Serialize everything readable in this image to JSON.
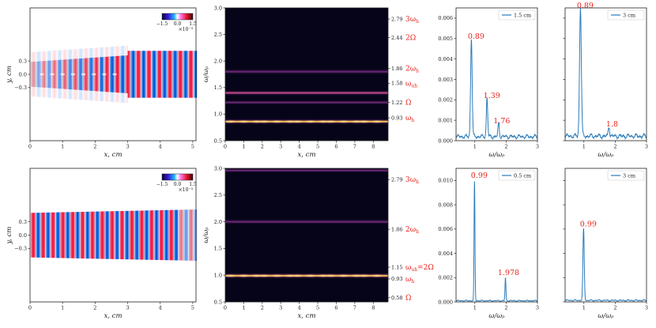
{
  "chart_data": {
    "type": "multi-panel",
    "colors": {
      "line": "#2b7bba",
      "annot": "#e8251d",
      "spectrogram_bg": "#050418",
      "axis": "#222222"
    },
    "rows": [
      {
        "field_map": {
          "type": "heatmap",
          "xlabel": "x, cm",
          "ylabel": "y, cm",
          "xlim": [
            0,
            5.1
          ],
          "ylim": [
            -1.5,
            1.5
          ],
          "xticks": [
            0,
            1,
            2,
            3,
            4,
            5
          ],
          "yticks": [
            0.3,
            0.0,
            -0.3
          ],
          "colorbar": {
            "ticks": [
              "−1.5",
              "0.0",
              "1.5"
            ],
            "exponent": "×10⁻³"
          }
        },
        "spectrogram": {
          "type": "heatmap",
          "xlabel": "x, cm",
          "ylabel": "ω/ωp",
          "xlim": [
            0,
            8.8
          ],
          "ylim": [
            0.5,
            3.0
          ],
          "xticks": [
            0,
            1,
            2,
            3,
            4,
            5,
            6,
            7,
            8
          ],
          "yticks": [
            0.5,
            1.0,
            1.5,
            2.0,
            2.5,
            3.0
          ],
          "bands": [
            {
              "y": 0.86,
              "intensity": 1.0
            },
            {
              "y": 1.4,
              "intensity": 0.6
            },
            {
              "y": 1.22,
              "intensity": 0.25
            },
            {
              "y": 1.8,
              "intensity": 0.45
            }
          ],
          "right_ticks": [
            {
              "value": 2.79,
              "label": "2.79",
              "name": "3ωh"
            },
            {
              "value": 2.44,
              "label": "2.44",
              "name": "2Ω"
            },
            {
              "value": 1.86,
              "label": "1.86",
              "name": "2ωh"
            },
            {
              "value": 1.58,
              "label": "1.58",
              "name": "ωuh"
            },
            {
              "value": 1.22,
              "label": "1.22",
              "name": "Ω"
            },
            {
              "value": 0.93,
              "label": "0.93",
              "name": "ωh"
            }
          ]
        },
        "spectra": [
          {
            "type": "line",
            "legend": "1.5 cm",
            "xlabel": "ω/ωp",
            "xlim": [
              0.4,
              3.0
            ],
            "ylim": [
              0,
              0.0065
            ],
            "xticks": [
              1,
              2,
              3
            ],
            "yticks": [
              {
                "value": 0,
                "label": "0.000"
              },
              {
                "value": 0.001,
                "label": "0.001"
              },
              {
                "value": 0.002,
                "label": "0.002"
              },
              {
                "value": 0.003,
                "label": "0.003"
              },
              {
                "value": 0.004,
                "label": "0.004"
              },
              {
                "value": 0.005,
                "label": "0.005"
              },
              {
                "value": 0.006,
                "label": "0.006"
              }
            ],
            "peaks": [
              {
                "x": 0.89,
                "y": 0.0048,
                "w": 0.035,
                "label": "0.89"
              },
              {
                "x": 1.39,
                "y": 0.0019,
                "w": 0.03,
                "label": "1.39"
              },
              {
                "x": 1.76,
                "y": 0.00065,
                "w": 0.03,
                "label": "1.76"
              }
            ],
            "baseline": 0.00016
          },
          {
            "type": "line",
            "legend": "3 cm",
            "xlabel": "ω/ωp",
            "xlim": [
              0.4,
              3.0
            ],
            "ylim": [
              0,
              0.0065
            ],
            "xticks": [
              1,
              2,
              3
            ],
            "yticks": [],
            "peaks": [
              {
                "x": 0.89,
                "y": 0.0063,
                "w": 0.04,
                "label": "0.89"
              },
              {
                "x": 1.8,
                "y": 0.0005,
                "w": 0.03,
                "label": "1.8"
              }
            ],
            "baseline": 0.00018
          }
        ]
      },
      {
        "field_map": {
          "type": "heatmap",
          "xlabel": "x, cm",
          "ylabel": "y, cm",
          "xlim": [
            0,
            5.1
          ],
          "ylim": [
            -1.5,
            1.5
          ],
          "xticks": [
            0,
            1,
            2,
            3,
            4,
            5
          ],
          "yticks": [
            0.3,
            0.0,
            -0.3
          ],
          "colorbar": {
            "ticks": [
              "−1.5",
              "0.0",
              "1.5"
            ],
            "exponent": "×10⁻³"
          }
        },
        "spectrogram": {
          "type": "heatmap",
          "xlabel": "x, cm",
          "ylabel": "ω/ωp",
          "xlim": [
            0,
            8.8
          ],
          "ylim": [
            0.5,
            3.0
          ],
          "xticks": [
            0,
            1,
            2,
            3,
            4,
            5,
            6,
            7,
            8
          ],
          "yticks": [
            0.5,
            1.0,
            1.5,
            2.0,
            2.5,
            3.0
          ],
          "bands": [
            {
              "y": 0.99,
              "intensity": 1.0
            },
            {
              "y": 2.0,
              "intensity": 0.45
            },
            {
              "y": 2.96,
              "intensity": 0.25
            }
          ],
          "right_ticks": [
            {
              "value": 2.79,
              "label": "2.79",
              "name": "3ωh"
            },
            {
              "value": 1.86,
              "label": "1.86",
              "name": "2ωh"
            },
            {
              "value": 1.15,
              "label": "1.15",
              "name": "ωuh=2Ω"
            },
            {
              "value": 0.93,
              "label": "0.93",
              "name": "ωh"
            },
            {
              "value": 0.58,
              "label": "0.58",
              "name": "Ω"
            }
          ]
        },
        "spectra": [
          {
            "type": "line",
            "legend": "0.5 cm",
            "xlabel": "ω/ωp",
            "xlim": [
              0.4,
              3.0
            ],
            "ylim": [
              0,
              0.011
            ],
            "xticks": [
              1,
              2,
              3
            ],
            "yticks": [
              {
                "value": 0,
                "label": "0.000"
              },
              {
                "value": 0.002,
                "label": "0.002"
              },
              {
                "value": 0.004,
                "label": "0.004"
              },
              {
                "value": 0.006,
                "label": "0.006"
              },
              {
                "value": 0.008,
                "label": "0.008"
              },
              {
                "value": 0.01,
                "label": "0.010"
              }
            ],
            "peaks": [
              {
                "x": 0.99,
                "y": 0.0099,
                "w": 0.02,
                "label": "0.99"
              },
              {
                "x": 1.978,
                "y": 0.0019,
                "w": 0.02,
                "label": "1.978"
              }
            ],
            "baseline": 8e-05
          },
          {
            "type": "line",
            "legend": "3 cm",
            "xlabel": "ω/ωp",
            "xlim": [
              0.4,
              3.0
            ],
            "ylim": [
              0,
              0.011
            ],
            "xticks": [
              1,
              2,
              3
            ],
            "yticks": [],
            "peaks": [
              {
                "x": 0.99,
                "y": 0.0059,
                "w": 0.03,
                "label": "0.99"
              }
            ],
            "baseline": 0.0001
          }
        ]
      }
    ]
  }
}
